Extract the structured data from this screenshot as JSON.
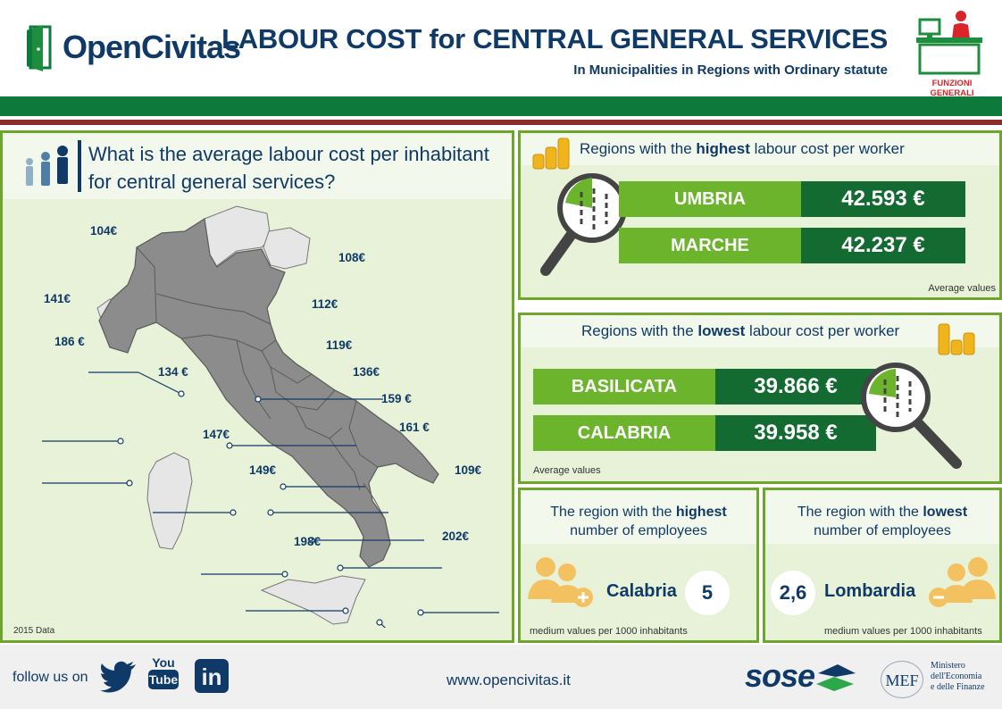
{
  "header": {
    "logo_text": "OpenCivitas",
    "title": "LABOUR COST for CENTRAL GENERAL SERVICES",
    "subtitle": "In Municipalities in Regions with Ordinary statute",
    "badge_label": "FUNZIONI GENERALI"
  },
  "map_panel": {
    "question_line1": "What is the average labour cost per inhabitant",
    "question_line2": "for central general services?",
    "data_note": "2015 Data",
    "labels": [
      "104€",
      "108€",
      "141€",
      "112€",
      "186 €",
      "119€",
      "134 €",
      "136€",
      "159 €",
      "161 €",
      "147€",
      "149€",
      "109€",
      "202€",
      "198€"
    ]
  },
  "highest_cost": {
    "head_pre": "Regions with the ",
    "head_bold": "highest",
    "head_post": " labour cost per worker",
    "rows": [
      {
        "region": "UMBRIA",
        "value": "42.593 €"
      },
      {
        "region": "MARCHE",
        "value": "42.237 €"
      }
    ],
    "note": "Average values"
  },
  "lowest_cost": {
    "head_pre": "Regions with the ",
    "head_bold": "lowest",
    "head_post": " labour cost per worker",
    "rows": [
      {
        "region": "BASILICATA",
        "value": "39.866 €"
      },
      {
        "region": "CALABRIA",
        "value": "39.958 €"
      }
    ],
    "note": "Average values"
  },
  "employees_high": {
    "line1_pre": "The region with the ",
    "line1_bold": "highest",
    "line2": "number of employees",
    "region": "Calabria",
    "value": "5",
    "note": "medium values per 1000 inhabitants"
  },
  "employees_low": {
    "line1_pre": "The region with the ",
    "line1_bold": "lowest",
    "line2": "number of employees",
    "region": "Lombardia",
    "value": "2,6",
    "note": "medium values per 1000 inhabitants"
  },
  "footer": {
    "follow": "follow us on",
    "website": "www.opencivitas.it",
    "sose": "sose",
    "mef_short": "MEF",
    "mef_line1": "Ministero",
    "mef_line2": "dell'Economia",
    "mef_line3": "e delle Finanze",
    "youtube_top": "You",
    "youtube_bottom": "Tube",
    "linkedin": "in"
  },
  "colors": {
    "navy": "#0f3a67",
    "green_light": "#6cb42c",
    "green_dark": "#146b32",
    "panel_bg": "#e8f2d8",
    "accent_red": "#d9242a"
  }
}
